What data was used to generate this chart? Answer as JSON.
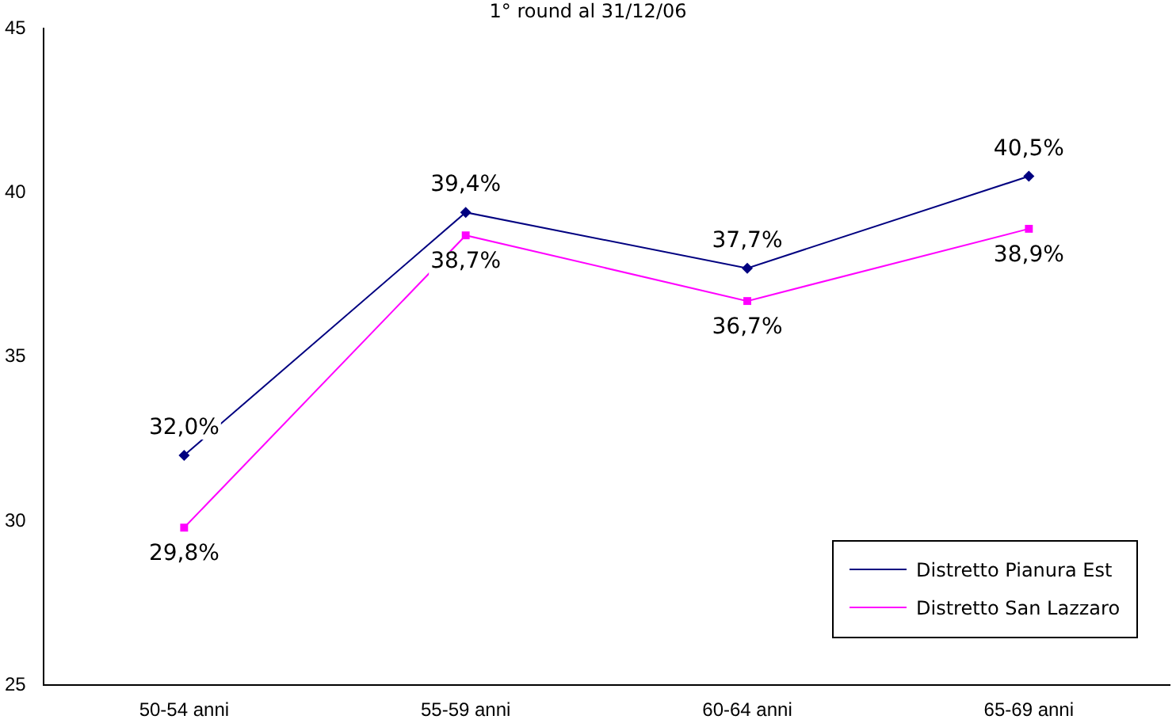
{
  "chart_data": {
    "type": "line",
    "title": "1° round al 31/12/06",
    "categories": [
      "50-54 anni",
      "55-59 anni",
      "60-64 anni",
      "65-69 anni"
    ],
    "series": [
      {
        "name": "Distretto Pianura Est",
        "color": "#000080",
        "marker": "diamond",
        "values": [
          32.0,
          39.4,
          37.7,
          40.5
        ],
        "value_labels": [
          "32,0%",
          "39,4%",
          "37,7%",
          "40,5%"
        ]
      },
      {
        "name": "Distretto San Lazzaro",
        "color": "#ff00ff",
        "marker": "square",
        "values": [
          29.8,
          38.7,
          36.7,
          38.9
        ],
        "value_labels": [
          "29,8%",
          "38,7%",
          "36,7%",
          "38,9%"
        ]
      }
    ],
    "ylim": [
      25,
      45
    ],
    "yticks": [
      25,
      30,
      35,
      40,
      45
    ],
    "grid": false,
    "legend": "bottom right"
  }
}
